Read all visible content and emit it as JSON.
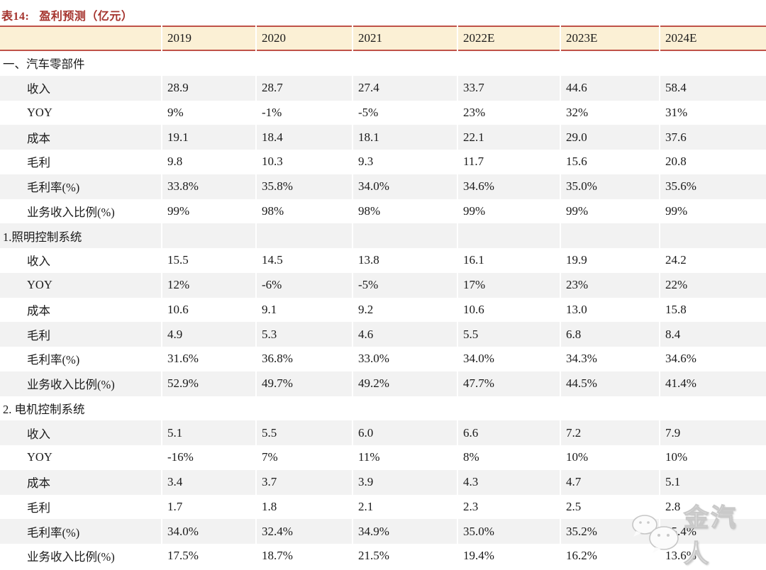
{
  "title": {
    "prefix": "表14:",
    "text": "盈利预测（亿元）"
  },
  "table": {
    "columns": [
      "2019",
      "2020",
      "2021",
      "2022E",
      "2023E",
      "2024E"
    ],
    "rows": [
      {
        "label": "一、汽车零部件",
        "section": true,
        "values": [
          "",
          "",
          "",
          "",
          "",
          ""
        ]
      },
      {
        "label": "收入",
        "section": false,
        "values": [
          "28.9",
          "28.7",
          "27.4",
          "33.7",
          "44.6",
          "58.4"
        ]
      },
      {
        "label": "YOY",
        "section": false,
        "values": [
          "9%",
          "-1%",
          "-5%",
          "23%",
          "32%",
          "31%"
        ]
      },
      {
        "label": "成本",
        "section": false,
        "values": [
          "19.1",
          "18.4",
          "18.1",
          "22.1",
          "29.0",
          "37.6"
        ]
      },
      {
        "label": "毛利",
        "section": false,
        "values": [
          "9.8",
          "10.3",
          "9.3",
          "11.7",
          "15.6",
          "20.8"
        ]
      },
      {
        "label": "毛利率(%)",
        "section": false,
        "values": [
          "33.8%",
          "35.8%",
          "34.0%",
          "34.6%",
          "35.0%",
          "35.6%"
        ]
      },
      {
        "label": "业务收入比例(%)",
        "section": false,
        "values": [
          "99%",
          "98%",
          "98%",
          "99%",
          "99%",
          "99%"
        ]
      },
      {
        "label": "1.照明控制系统",
        "section": true,
        "values": [
          "",
          "",
          "",
          "",
          "",
          ""
        ]
      },
      {
        "label": "收入",
        "section": false,
        "values": [
          "15.5",
          "14.5",
          "13.8",
          "16.1",
          "19.9",
          "24.2"
        ]
      },
      {
        "label": "YOY",
        "section": false,
        "values": [
          "12%",
          "-6%",
          "-5%",
          "17%",
          "23%",
          "22%"
        ]
      },
      {
        "label": "成本",
        "section": false,
        "values": [
          "10.6",
          "9.1",
          "9.2",
          "10.6",
          "13.0",
          "15.8"
        ]
      },
      {
        "label": "毛利",
        "section": false,
        "values": [
          "4.9",
          "5.3",
          "4.6",
          "5.5",
          "6.8",
          "8.4"
        ]
      },
      {
        "label": "毛利率(%)",
        "section": false,
        "values": [
          "31.6%",
          "36.8%",
          "33.0%",
          "34.0%",
          "34.3%",
          "34.6%"
        ]
      },
      {
        "label": "业务收入比例(%)",
        "section": false,
        "values": [
          "52.9%",
          "49.7%",
          "49.2%",
          "47.7%",
          "44.5%",
          "41.4%"
        ]
      },
      {
        "label": "2. 电机控制系统",
        "section": true,
        "values": [
          "",
          "",
          "",
          "",
          "",
          ""
        ]
      },
      {
        "label": "收入",
        "section": false,
        "values": [
          "5.1",
          "5.5",
          "6.0",
          "6.6",
          "7.2",
          "7.9"
        ]
      },
      {
        "label": "YOY",
        "section": false,
        "values": [
          "-16%",
          "7%",
          "11%",
          "8%",
          "10%",
          "10%"
        ]
      },
      {
        "label": "成本",
        "section": false,
        "values": [
          "3.4",
          "3.7",
          "3.9",
          "4.3",
          "4.7",
          "5.1"
        ]
      },
      {
        "label": "毛利",
        "section": false,
        "values": [
          "1.7",
          "1.8",
          "2.1",
          "2.3",
          "2.5",
          "2.8"
        ]
      },
      {
        "label": "毛利率(%)",
        "section": false,
        "values": [
          "34.0%",
          "32.4%",
          "34.9%",
          "35.0%",
          "35.2%",
          "35.4%"
        ]
      },
      {
        "label": "业务收入比例(%)",
        "section": false,
        "values": [
          "17.5%",
          "18.7%",
          "21.5%",
          "19.4%",
          "16.2%",
          "13.6%"
        ]
      }
    ]
  },
  "watermark": {
    "icon": "wechat-icon",
    "text": "金汽人"
  },
  "colors": {
    "accent_red": "#A5342E",
    "line_red": "#C05248",
    "header_bg": "#FBF0D5",
    "row_alt_bg": "#F2F2F2",
    "text": "#1A1A1A"
  }
}
